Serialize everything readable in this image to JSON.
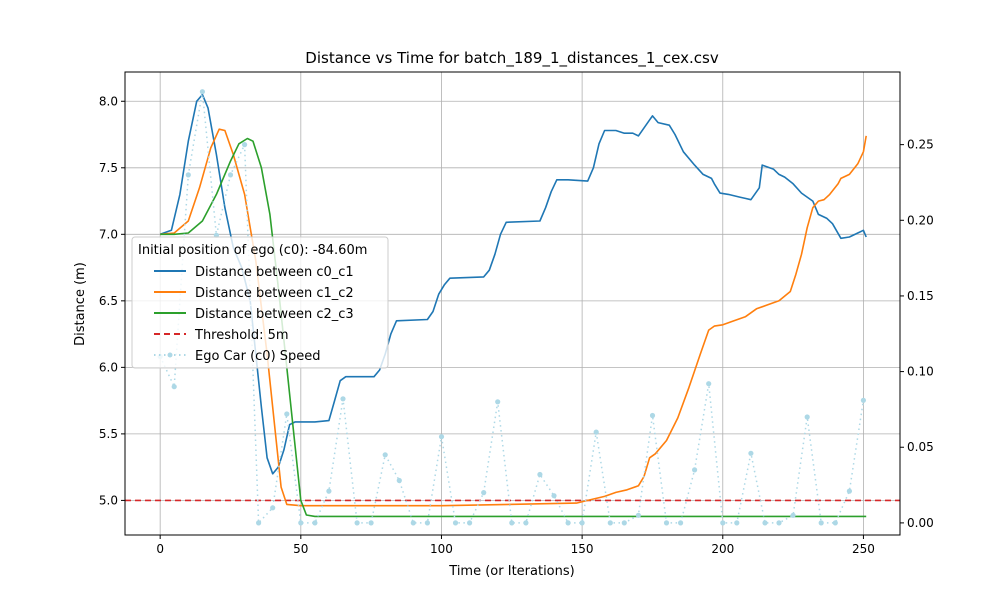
{
  "chart_data": {
    "type": "line",
    "title": "Distance vs Time for batch_189_1_distances_1_cex.csv",
    "xlabel": "Time (or Iterations)",
    "ylabel": "Distance (m)",
    "xlim": [
      -12.5,
      263
    ],
    "ylim": [
      4.74,
      8.22
    ],
    "y2lim": [
      -0.008,
      0.298
    ],
    "xticks": [
      0,
      50,
      100,
      150,
      200,
      250
    ],
    "yticks": [
      5.0,
      5.5,
      6.0,
      6.5,
      7.0,
      7.5,
      8.0
    ],
    "y2ticks": [
      0.0,
      0.05,
      0.1,
      0.15,
      0.2,
      0.25
    ],
    "grid": true,
    "legend": {
      "title": "Initial position of ego (c0): -84.60m",
      "placement": "center-left"
    },
    "threshold": {
      "name": "Threshold: 5m",
      "value": 5.0,
      "color": "#d62728"
    },
    "series": [
      {
        "name": "Distance between c0_c1",
        "color": "#1f77b4",
        "points": [
          [
            0,
            7.0
          ],
          [
            4,
            7.03
          ],
          [
            7,
            7.3
          ],
          [
            10,
            7.7
          ],
          [
            13,
            8.0
          ],
          [
            15,
            8.05
          ],
          [
            17,
            7.95
          ],
          [
            20,
            7.6
          ],
          [
            23,
            7.2
          ],
          [
            26,
            6.9
          ],
          [
            29,
            6.75
          ],
          [
            32,
            6.5
          ],
          [
            34,
            6.1
          ],
          [
            36,
            5.7
          ],
          [
            38,
            5.32
          ],
          [
            40,
            5.2
          ],
          [
            42,
            5.25
          ],
          [
            44,
            5.38
          ],
          [
            46,
            5.57
          ],
          [
            48,
            5.59
          ],
          [
            55,
            5.59
          ],
          [
            60,
            5.6
          ],
          [
            62,
            5.75
          ],
          [
            64,
            5.9
          ],
          [
            66,
            5.93
          ],
          [
            76,
            5.93
          ],
          [
            78,
            5.98
          ],
          [
            80,
            6.1
          ],
          [
            82,
            6.25
          ],
          [
            84,
            6.35
          ],
          [
            95,
            6.36
          ],
          [
            97,
            6.42
          ],
          [
            99,
            6.55
          ],
          [
            101,
            6.62
          ],
          [
            103,
            6.67
          ],
          [
            115,
            6.68
          ],
          [
            117,
            6.73
          ],
          [
            119,
            6.85
          ],
          [
            121,
            7.0
          ],
          [
            123,
            7.09
          ],
          [
            135,
            7.1
          ],
          [
            137,
            7.2
          ],
          [
            139,
            7.32
          ],
          [
            141,
            7.41
          ],
          [
            145,
            7.41
          ],
          [
            152,
            7.4
          ],
          [
            154,
            7.5
          ],
          [
            156,
            7.68
          ],
          [
            158,
            7.78
          ],
          [
            162,
            7.78
          ],
          [
            165,
            7.76
          ],
          [
            168,
            7.76
          ],
          [
            170,
            7.74
          ],
          [
            172,
            7.8
          ],
          [
            174,
            7.86
          ],
          [
            175,
            7.89
          ],
          [
            177,
            7.84
          ],
          [
            181,
            7.82
          ],
          [
            183,
            7.75
          ],
          [
            186,
            7.62
          ],
          [
            190,
            7.52
          ],
          [
            193,
            7.45
          ],
          [
            196,
            7.42
          ],
          [
            197,
            7.38
          ],
          [
            199,
            7.31
          ],
          [
            202,
            7.3
          ],
          [
            206,
            7.28
          ],
          [
            208,
            7.27
          ],
          [
            210,
            7.26
          ],
          [
            213,
            7.35
          ],
          [
            214,
            7.52
          ],
          [
            218,
            7.49
          ],
          [
            220,
            7.45
          ],
          [
            222,
            7.43
          ],
          [
            225,
            7.38
          ],
          [
            228,
            7.31
          ],
          [
            232,
            7.25
          ],
          [
            234,
            7.15
          ],
          [
            237,
            7.12
          ],
          [
            239,
            7.08
          ],
          [
            242,
            6.97
          ],
          [
            245,
            6.98
          ],
          [
            248,
            7.01
          ],
          [
            250,
            7.03
          ],
          [
            251,
            6.98
          ]
        ]
      },
      {
        "name": "Distance between c1_c2",
        "color": "#ff7f0e",
        "points": [
          [
            0,
            7.0
          ],
          [
            5,
            7.01
          ],
          [
            10,
            7.1
          ],
          [
            14,
            7.35
          ],
          [
            18,
            7.65
          ],
          [
            21,
            7.79
          ],
          [
            23,
            7.78
          ],
          [
            26,
            7.6
          ],
          [
            30,
            7.3
          ],
          [
            34,
            6.8
          ],
          [
            38,
            6.1
          ],
          [
            41,
            5.5
          ],
          [
            43,
            5.1
          ],
          [
            45,
            4.97
          ],
          [
            50,
            4.96
          ],
          [
            100,
            4.96
          ],
          [
            148,
            4.98
          ],
          [
            152,
            5.0
          ],
          [
            158,
            5.03
          ],
          [
            162,
            5.06
          ],
          [
            166,
            5.08
          ],
          [
            170,
            5.11
          ],
          [
            172,
            5.18
          ],
          [
            174,
            5.32
          ],
          [
            176,
            5.35
          ],
          [
            180,
            5.45
          ],
          [
            184,
            5.62
          ],
          [
            188,
            5.85
          ],
          [
            192,
            6.1
          ],
          [
            195,
            6.28
          ],
          [
            197,
            6.31
          ],
          [
            200,
            6.32
          ],
          [
            204,
            6.35
          ],
          [
            208,
            6.38
          ],
          [
            212,
            6.44
          ],
          [
            216,
            6.47
          ],
          [
            220,
            6.5
          ],
          [
            224,
            6.57
          ],
          [
            226,
            6.7
          ],
          [
            228,
            6.85
          ],
          [
            230,
            7.05
          ],
          [
            232,
            7.2
          ],
          [
            234,
            7.25
          ],
          [
            236,
            7.26
          ],
          [
            238,
            7.3
          ],
          [
            241,
            7.38
          ],
          [
            242,
            7.42
          ],
          [
            245,
            7.45
          ],
          [
            248,
            7.53
          ],
          [
            250,
            7.62
          ],
          [
            251,
            7.74
          ]
        ]
      },
      {
        "name": "Distance between c2_c3",
        "color": "#2ca02c",
        "points": [
          [
            0,
            7.0
          ],
          [
            5,
            7.0
          ],
          [
            10,
            7.01
          ],
          [
            15,
            7.1
          ],
          [
            20,
            7.3
          ],
          [
            25,
            7.55
          ],
          [
            28,
            7.68
          ],
          [
            31,
            7.72
          ],
          [
            33,
            7.7
          ],
          [
            36,
            7.5
          ],
          [
            39,
            7.15
          ],
          [
            42,
            6.6
          ],
          [
            45,
            6.0
          ],
          [
            48,
            5.4
          ],
          [
            50,
            5.0
          ],
          [
            52,
            4.89
          ],
          [
            55,
            4.88
          ],
          [
            100,
            4.88
          ],
          [
            200,
            4.88
          ],
          [
            251,
            4.88
          ]
        ]
      }
    ],
    "speed_series": {
      "name": "Ego Car (c0) Speed",
      "color": "#add8e6",
      "points": [
        [
          0,
          0.11
        ],
        [
          5,
          0.09
        ],
        [
          10,
          0.23
        ],
        [
          15,
          0.285
        ],
        [
          20,
          0.19
        ],
        [
          25,
          0.23
        ],
        [
          30,
          0.25
        ],
        [
          35,
          0.0
        ],
        [
          40,
          0.01
        ],
        [
          45,
          0.072
        ],
        [
          50,
          0.0
        ],
        [
          55,
          0.0
        ],
        [
          60,
          0.021
        ],
        [
          65,
          0.082
        ],
        [
          70,
          0.0
        ],
        [
          75,
          0.0
        ],
        [
          80,
          0.045
        ],
        [
          85,
          0.028
        ],
        [
          90,
          0.0
        ],
        [
          95,
          0.0
        ],
        [
          100,
          0.057
        ],
        [
          105,
          0.0
        ],
        [
          110,
          0.0
        ],
        [
          115,
          0.02
        ],
        [
          120,
          0.08
        ],
        [
          125,
          0.0
        ],
        [
          130,
          0.0
        ],
        [
          135,
          0.032
        ],
        [
          140,
          0.018
        ],
        [
          145,
          0.0
        ],
        [
          150,
          0.0
        ],
        [
          155,
          0.06
        ],
        [
          160,
          0.0
        ],
        [
          165,
          0.0
        ],
        [
          170,
          0.005
        ],
        [
          175,
          0.071
        ],
        [
          180,
          0.0
        ],
        [
          185,
          0.0
        ],
        [
          190,
          0.035
        ],
        [
          195,
          0.092
        ],
        [
          200,
          0.0
        ],
        [
          205,
          0.0
        ],
        [
          210,
          0.046
        ],
        [
          215,
          0.0
        ],
        [
          220,
          0.0
        ],
        [
          225,
          0.005
        ],
        [
          230,
          0.07
        ],
        [
          235,
          0.0
        ],
        [
          240,
          0.0
        ],
        [
          245,
          0.021
        ],
        [
          250,
          0.081
        ]
      ]
    }
  }
}
